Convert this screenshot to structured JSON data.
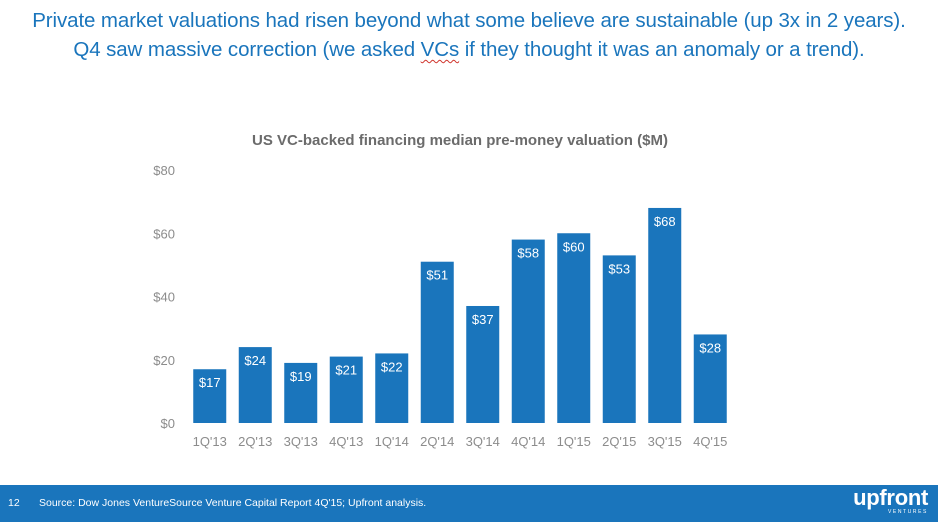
{
  "headline": {
    "line1": "Private market valuations had risen beyond what some believe are sustainable (up 3x in 2 years).",
    "line2_before": "Q4 saw massive correction (we asked ",
    "line2_word": "VCs",
    "line2_after": " if they thought it was an anomaly or a trend)."
  },
  "footer": {
    "page_number": "12",
    "source": "Source: Dow Jones VentureSource Venture Capital Report 4Q'15; Upfront analysis.",
    "logo_text": "upfront",
    "logo_subtext": "VENTURES"
  },
  "colors": {
    "accent": "#1a75bc",
    "bar": "#1a75bc",
    "bar_label": "#ffffff",
    "axis_text": "#8c8c8c",
    "title_text": "#6b6b6b"
  },
  "chart_data": {
    "type": "bar",
    "title": "US VC-backed financing median pre-money valuation ($M)",
    "xlabel": "",
    "ylabel": "",
    "categories": [
      "1Q'13",
      "2Q'13",
      "3Q'13",
      "4Q'13",
      "1Q'14",
      "2Q'14",
      "3Q'14",
      "4Q'14",
      "1Q'15",
      "2Q'15",
      "3Q'15",
      "4Q'15"
    ],
    "values": [
      17,
      24,
      19,
      21,
      22,
      51,
      37,
      58,
      60,
      53,
      68,
      28
    ],
    "data_labels": [
      "$17",
      "$24",
      "$19",
      "$21",
      "$22",
      "$51",
      "$37",
      "$58",
      "$60",
      "$53",
      "$68",
      "$28"
    ],
    "ylim": [
      0,
      80
    ],
    "y_ticks": [
      0,
      20,
      40,
      60,
      80
    ],
    "y_tick_labels": [
      "$0",
      "$20",
      "$40",
      "$60",
      "$80"
    ],
    "grid": false,
    "legend": "none"
  }
}
